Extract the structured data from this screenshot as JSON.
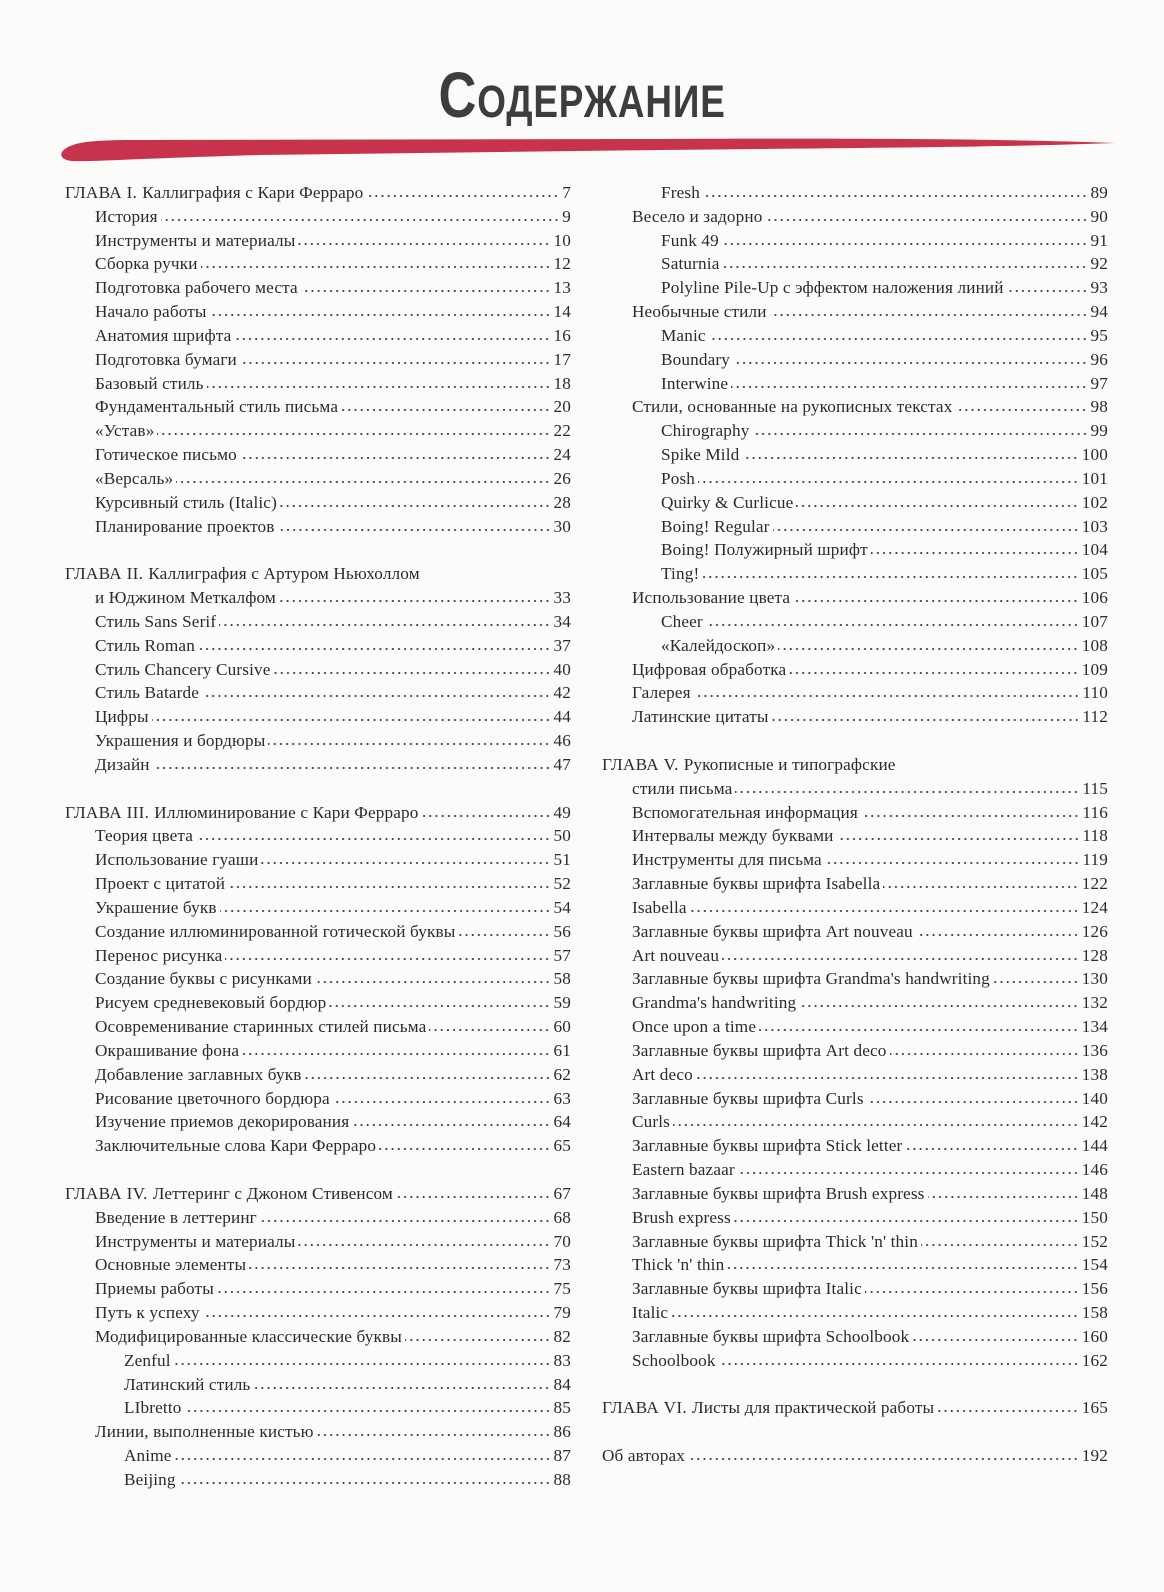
{
  "title": "Содержание",
  "colors": {
    "brush": "#c7324c",
    "text": "#2b2b2e"
  },
  "columns": [
    {
      "blocks": [
        {
          "entries": [
            {
              "level": 0,
              "label": "ГЛАВА I.",
              "text": "Каллиграфия с Кари Ферраро",
              "page": "7"
            },
            {
              "level": 1,
              "text": "История",
              "page": "9"
            },
            {
              "level": 1,
              "text": "Инструменты и материалы",
              "page": "10"
            },
            {
              "level": 1,
              "text": "Сборка ручки",
              "page": "12"
            },
            {
              "level": 1,
              "text": "Подготовка рабочего места",
              "page": "13"
            },
            {
              "level": 1,
              "text": "Начало работы",
              "page": "14"
            },
            {
              "level": 1,
              "text": "Анатомия шрифта",
              "page": "16"
            },
            {
              "level": 1,
              "text": "Подготовка бумаги",
              "page": "17"
            },
            {
              "level": 1,
              "text": "Базовый стиль",
              "page": "18"
            },
            {
              "level": 1,
              "text": "Фундаментальный стиль письма",
              "page": "20"
            },
            {
              "level": 1,
              "text": "«Устав»",
              "page": "22"
            },
            {
              "level": 1,
              "text": "Готическое письмо",
              "page": "24"
            },
            {
              "level": 1,
              "text": "«Версаль»",
              "page": "26"
            },
            {
              "level": 1,
              "text": "Курсивный стиль (Italic)",
              "page": "28"
            },
            {
              "level": 1,
              "text": "Планирование проектов",
              "page": "30"
            }
          ]
        },
        {
          "entries": [
            {
              "level": 0,
              "label": "ГЛАВА II.",
              "text": "Каллиграфия с Артуром Ньюхоллом"
            },
            {
              "level": 1,
              "text": "и Юджином Меткалфом",
              "page": "33"
            },
            {
              "level": 1,
              "text": "Стиль Sans Serif",
              "page": "34"
            },
            {
              "level": 1,
              "text": "Стиль Roman",
              "page": "37"
            },
            {
              "level": 1,
              "text": "Стиль Chancery Cursive",
              "page": "40"
            },
            {
              "level": 1,
              "text": "Стиль Batarde",
              "page": "42"
            },
            {
              "level": 1,
              "text": "Цифры",
              "page": "44"
            },
            {
              "level": 1,
              "text": "Украшения и бордюры",
              "page": "46"
            },
            {
              "level": 1,
              "text": "Дизайн",
              "page": "47"
            }
          ]
        },
        {
          "entries": [
            {
              "level": 0,
              "label": "ГЛАВА III.",
              "text": "Иллюминирование с Кари Ферраро",
              "page": "49"
            },
            {
              "level": 1,
              "text": "Теория цвета",
              "page": "50"
            },
            {
              "level": 1,
              "text": "Использование гуаши",
              "page": "51"
            },
            {
              "level": 1,
              "text": "Проект с цитатой",
              "page": "52"
            },
            {
              "level": 1,
              "text": "Украшение букв",
              "page": "54"
            },
            {
              "level": 1,
              "text": "Создание иллюминированной готической буквы",
              "page": "56"
            },
            {
              "level": 1,
              "text": "Перенос рисунка",
              "page": "57"
            },
            {
              "level": 1,
              "text": "Создание буквы с рисунками",
              "page": "58"
            },
            {
              "level": 1,
              "text": "Рисуем средневековый бордюр",
              "page": "59"
            },
            {
              "level": 1,
              "text": "Осовременивание старинных стилей письма",
              "page": "60"
            },
            {
              "level": 1,
              "text": "Окрашивание фона",
              "page": "61"
            },
            {
              "level": 1,
              "text": "Добавление заглавных букв",
              "page": "62"
            },
            {
              "level": 1,
              "text": "Рисование цветочного бордюра",
              "page": "63"
            },
            {
              "level": 1,
              "text": "Изучение приемов декорирования",
              "page": "64"
            },
            {
              "level": 1,
              "text": "Заключительные слова Кари Ферраро",
              "page": "65"
            }
          ]
        },
        {
          "entries": [
            {
              "level": 0,
              "label": "ГЛАВА IV.",
              "text": "Леттеринг с Джоном Стивенсом",
              "page": "67"
            },
            {
              "level": 1,
              "text": "Введение в леттеринг",
              "page": "68"
            },
            {
              "level": 1,
              "text": "Инструменты и материалы",
              "page": "70"
            },
            {
              "level": 1,
              "text": "Основные элементы",
              "page": "73"
            },
            {
              "level": 1,
              "text": "Приемы работы",
              "page": "75"
            },
            {
              "level": 1,
              "text": "Путь к успеху",
              "page": "79"
            },
            {
              "level": 1,
              "text": "Модифицированные классические буквы",
              "page": "82"
            },
            {
              "level": 2,
              "text": "Zenful",
              "page": "83"
            },
            {
              "level": 2,
              "text": "Латинский стиль",
              "page": "84"
            },
            {
              "level": 2,
              "text": "LIbretto",
              "page": "85"
            },
            {
              "level": 1,
              "text": "Линии, выполненные кистью",
              "page": "86"
            },
            {
              "level": 2,
              "text": "Anime",
              "page": "87"
            },
            {
              "level": 2,
              "text": "Beijing",
              "page": "88"
            }
          ]
        }
      ]
    },
    {
      "blocks": [
        {
          "entries": [
            {
              "level": 2,
              "text": "Fresh",
              "page": "89"
            },
            {
              "level": 1,
              "text": "Весело и задорно",
              "page": "90"
            },
            {
              "level": 2,
              "text": "Funk 49",
              "page": "91"
            },
            {
              "level": 2,
              "text": "Saturnia",
              "page": "92"
            },
            {
              "level": 2,
              "text": "Polyline Pile-Up с эффектом наложения линий",
              "page": "93"
            },
            {
              "level": 1,
              "text": "Необычные стили",
              "page": "94"
            },
            {
              "level": 2,
              "text": "Manic",
              "page": "95"
            },
            {
              "level": 2,
              "text": "Boundary",
              "page": "96"
            },
            {
              "level": 2,
              "text": "Interwine",
              "page": "97"
            },
            {
              "level": 1,
              "text": "Стили, основанные на рукописных текстах",
              "page": "98"
            },
            {
              "level": 2,
              "text": "Chirography",
              "page": "99"
            },
            {
              "level": 2,
              "text": "Spike Mild",
              "page": "100"
            },
            {
              "level": 2,
              "text": "Posh",
              "page": "101"
            },
            {
              "level": 2,
              "text": "Quirky & Curlicue",
              "page": "102"
            },
            {
              "level": 2,
              "text": "Boing! Regular",
              "page": "103"
            },
            {
              "level": 2,
              "text": "Boing! Полужирный шрифт",
              "page": "104"
            },
            {
              "level": 2,
              "text": "Ting!",
              "page": "105"
            },
            {
              "level": 1,
              "text": "Использование цвета",
              "page": "106"
            },
            {
              "level": 2,
              "text": "Cheer",
              "page": "107"
            },
            {
              "level": 2,
              "text": "«Калейдоскоп»",
              "page": "108"
            },
            {
              "level": 1,
              "text": "Цифровая обработка",
              "page": "109"
            },
            {
              "level": 1,
              "text": "Галерея",
              "page": "110"
            },
            {
              "level": 1,
              "text": "Латинские цитаты",
              "page": "112"
            }
          ]
        },
        {
          "entries": [
            {
              "level": 0,
              "label": "ГЛАВА V.",
              "text": "Рукописные и типографские"
            },
            {
              "level": 1,
              "text": "стили письма",
              "page": "115"
            },
            {
              "level": 1,
              "text": "Вспомогательная информация",
              "page": "116"
            },
            {
              "level": 1,
              "text": "Интервалы между буквами",
              "page": "118"
            },
            {
              "level": 1,
              "text": "Инструменты для письма",
              "page": "119"
            },
            {
              "level": 1,
              "text": "Заглавные буквы шрифта Isabella",
              "page": "122"
            },
            {
              "level": 1,
              "text": "Isabella",
              "page": "124"
            },
            {
              "level": 1,
              "text": "Заглавные буквы шрифта Art nouveau",
              "page": "126"
            },
            {
              "level": 1,
              "text": "Art nouveau",
              "page": "128"
            },
            {
              "level": 1,
              "text": "Заглавные буквы шрифта Grandma's handwriting",
              "page": "130"
            },
            {
              "level": 1,
              "text": "Grandma's handwriting",
              "page": "132"
            },
            {
              "level": 1,
              "text": "Once upon a time",
              "page": "134"
            },
            {
              "level": 1,
              "text": "Заглавные буквы шрифта Art deco",
              "page": "136"
            },
            {
              "level": 1,
              "text": "Art deco",
              "page": "138"
            },
            {
              "level": 1,
              "text": "Заглавные буквы шрифта Curls",
              "page": "140"
            },
            {
              "level": 1,
              "text": "Curls",
              "page": "142"
            },
            {
              "level": 1,
              "text": "Заглавные буквы шрифта Stick letter",
              "page": "144"
            },
            {
              "level": 1,
              "text": "Eastern bazaar",
              "page": "146"
            },
            {
              "level": 1,
              "text": "Заглавные буквы шрифта Brush express",
              "page": "148"
            },
            {
              "level": 1,
              "text": "Brush express",
              "page": "150"
            },
            {
              "level": 1,
              "text": "Заглавные буквы шрифта Thick 'n' thin",
              "page": "152"
            },
            {
              "level": 1,
              "text": "Thick 'n' thin",
              "page": "154"
            },
            {
              "level": 1,
              "text": "Заглавные буквы шрифта Italic",
              "page": "156"
            },
            {
              "level": 1,
              "text": "Italic",
              "page": "158"
            },
            {
              "level": 1,
              "text": "Заглавные буквы шрифта Schoolbook",
              "page": "160"
            },
            {
              "level": 1,
              "text": "Schoolbook",
              "page": "162"
            }
          ]
        },
        {
          "entries": [
            {
              "level": 0,
              "label": "ГЛАВА VI.",
              "text": "Листы для практической работы",
              "page": "165"
            }
          ]
        },
        {
          "entries": [
            {
              "level": 0,
              "text": "Об авторах",
              "page": "192"
            }
          ]
        }
      ]
    }
  ]
}
